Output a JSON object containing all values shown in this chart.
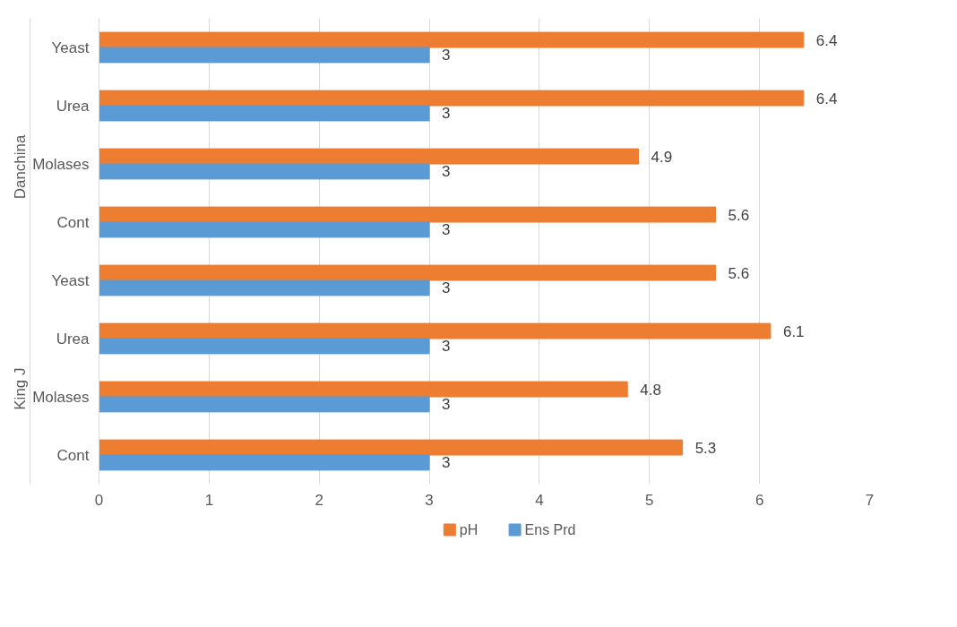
{
  "chart_data": {
    "type": "bar",
    "orientation": "horizontal",
    "categories": [
      "Yeast",
      "Urea",
      "Molases",
      "Cont",
      "Yeast",
      "Urea",
      "Molases",
      "Cont"
    ],
    "series": [
      {
        "name": "pH",
        "color": "#ed7d31",
        "values": [
          6.4,
          6.4,
          4.9,
          5.6,
          5.6,
          6.1,
          4.8,
          5.3
        ]
      },
      {
        "name": "Ens Prd",
        "color": "#5b9bd5",
        "values": [
          3,
          3,
          3,
          3,
          3,
          3,
          3,
          3
        ]
      }
    ],
    "annotations": [
      "Danchina",
      "King J"
    ],
    "xlim": [
      0,
      7
    ],
    "xticks": [
      0,
      1,
      2,
      3,
      4,
      5,
      6,
      7
    ],
    "grid": "x",
    "legend": "bottom",
    "data_labels": true
  }
}
